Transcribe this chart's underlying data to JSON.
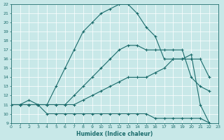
{
  "xlabel": "Humidex (Indice chaleur)",
  "background_color": "#c8e8e8",
  "grid_color": "#b0d0d0",
  "line_color": "#1a6b6b",
  "xlim": [
    0,
    23
  ],
  "ylim": [
    9,
    22
  ],
  "x_ticks": [
    0,
    1,
    2,
    3,
    4,
    5,
    6,
    7,
    8,
    9,
    10,
    11,
    12,
    13,
    14,
    15,
    16,
    17,
    18,
    19,
    20,
    21,
    22,
    23
  ],
  "y_ticks": [
    9,
    10,
    11,
    12,
    13,
    14,
    15,
    16,
    17,
    18,
    19,
    20,
    21,
    22
  ],
  "line1": {
    "x": [
      0,
      1,
      2,
      3,
      4,
      5,
      6,
      7,
      8,
      9,
      10,
      11,
      12,
      13,
      14,
      15,
      16,
      17,
      18,
      19,
      20,
      21,
      22
    ],
    "y": [
      11,
      11,
      11,
      11,
      11,
      13,
      15,
      17,
      19,
      20,
      21,
      21.5,
      22,
      22,
      21,
      19.5,
      18.5,
      16,
      16,
      16,
      16.5,
      11,
      9
    ]
  },
  "line2": {
    "x": [
      0,
      1,
      2,
      3,
      4,
      5,
      6,
      7,
      8,
      9,
      10,
      11,
      12,
      13,
      14,
      15,
      16,
      17,
      18,
      19,
      20,
      21,
      22
    ],
    "y": [
      11,
      11,
      11,
      11,
      11,
      11,
      11,
      12,
      13,
      14,
      15,
      16,
      17,
      17.5,
      17.5,
      17,
      17,
      17,
      17,
      17,
      14,
      13,
      12.5
    ]
  },
  "line3": {
    "x": [
      0,
      1,
      2,
      3,
      4,
      5,
      6,
      7,
      8,
      9,
      10,
      11,
      12,
      13,
      14,
      15,
      16,
      17,
      18,
      19,
      20,
      21,
      22
    ],
    "y": [
      11,
      11,
      11,
      11,
      11,
      11,
      11,
      11,
      11.5,
      12,
      12.5,
      13,
      13.5,
      14,
      14,
      14,
      14.5,
      15,
      16,
      16,
      16,
      16,
      14
    ]
  },
  "line4": {
    "x": [
      0,
      1,
      2,
      3,
      4,
      5,
      6,
      7,
      8,
      9,
      10,
      11,
      12,
      13,
      14,
      15,
      16,
      17,
      18,
      19,
      20,
      21,
      22
    ],
    "y": [
      11,
      11,
      11.5,
      11,
      10,
      10,
      10,
      10,
      10,
      10,
      10,
      10,
      10,
      10,
      10,
      10,
      9.5,
      9.5,
      9.5,
      9.5,
      9.5,
      9.5,
      9
    ]
  }
}
